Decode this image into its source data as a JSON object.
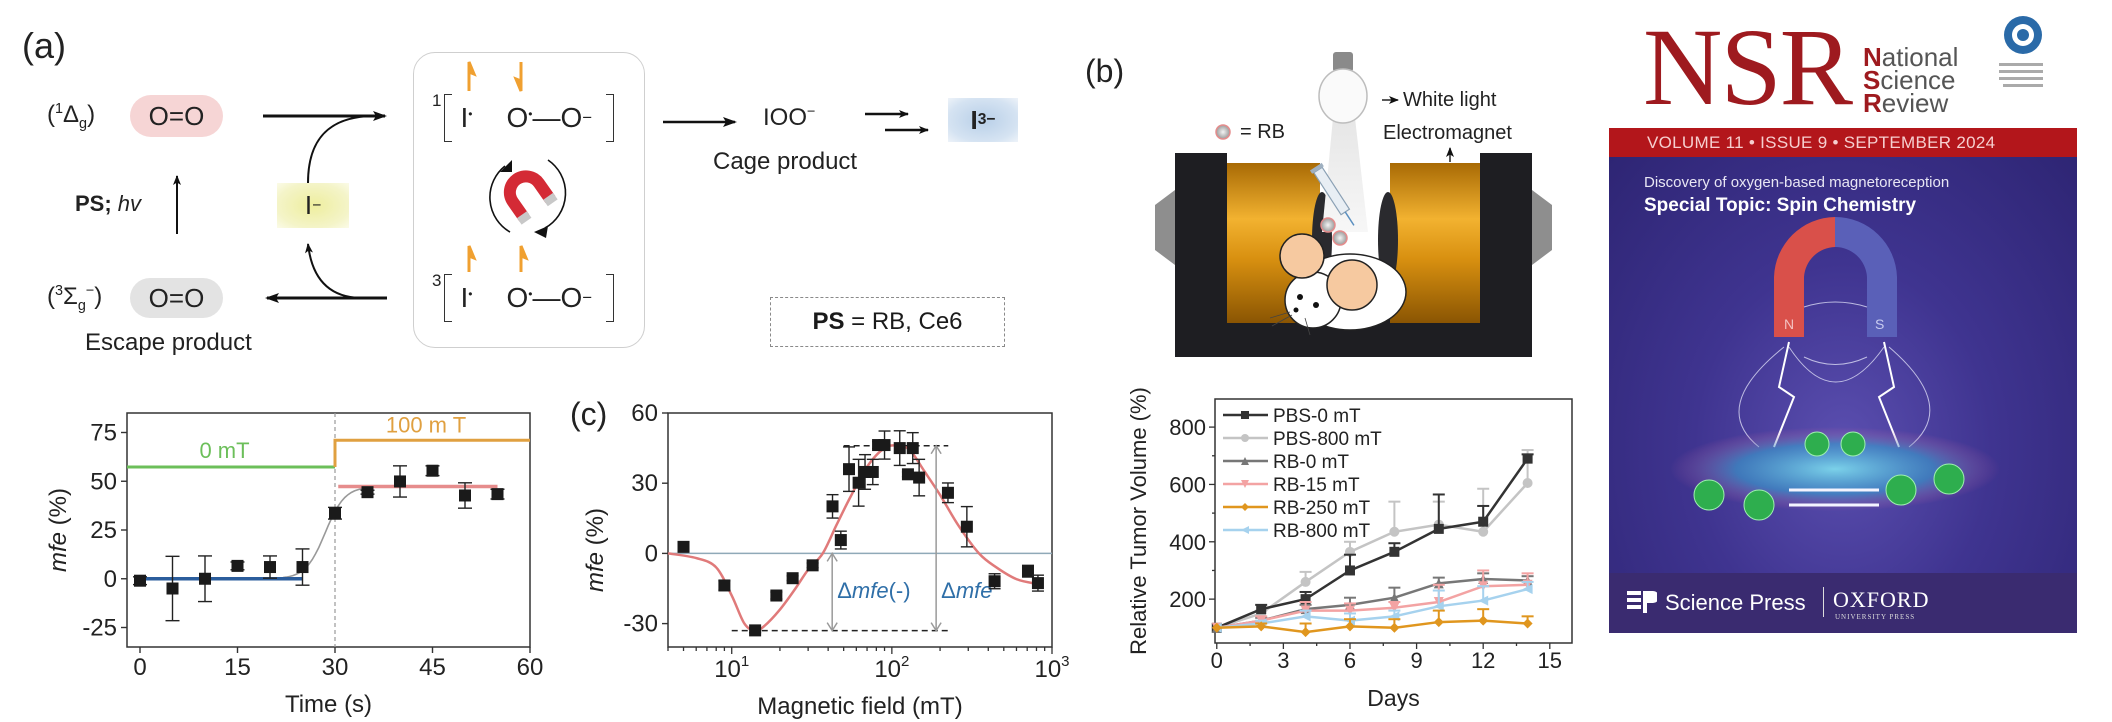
{
  "panel_a": {
    "label": "(a)",
    "singlet_state": {
      "open": "(",
      "sup": "1",
      "symbol": "Δ",
      "sub": "g",
      "close": ")"
    },
    "singlet_o2": "O=O",
    "triplet_state": {
      "open": "(",
      "sup": "3",
      "symbol": "Σ",
      "sub": "g",
      "sup2": "−",
      "close": ")"
    },
    "triplet_o2": "O=O",
    "escape_label": "Escape product",
    "excitation": {
      "bold": "PS;",
      "italic": " hv"
    },
    "iodide": {
      "symbol": "I",
      "charge": "−"
    },
    "singlet_pair": {
      "multiplicity": "1",
      "iodine": "I",
      "radical_dot": "•",
      "oxygen1": "O",
      "bond": "—",
      "oxygen2": "O",
      "charge": "−"
    },
    "triplet_pair": {
      "multiplicity": "3",
      "iodine": "I",
      "radical_dot": "•",
      "oxygen1": "O",
      "bond": "—",
      "oxygen2": "O",
      "charge": "−"
    },
    "cage_species": {
      "text": "IOO",
      "charge": "−"
    },
    "cage_label": "Cage product",
    "triiodide": {
      "symbol": "I",
      "sub": "3",
      "charge": "−"
    },
    "ps_definition": {
      "bold": "PS",
      "rest": " = RB, Ce6"
    },
    "icons": [
      "magnet-icon",
      "spin-up-arrow-icon",
      "spin-down-arrow-icon",
      "reaction-arrow-icon"
    ],
    "colors": {
      "singlet_bg": "#f6d5d5",
      "triplet_bg": "#e3e3e3",
      "iodide_bg": "#f1f1bd",
      "triiodide_bg": "#cfdff0",
      "spin": "#f0a030",
      "magnet": "#d42a35"
    }
  },
  "panel_b": {
    "label": "(b)",
    "rb_key": "= RB",
    "white_light": "White light",
    "electromagnet": "Electromagnet",
    "icons": [
      "light-bulb-icon",
      "electromagnet-icon",
      "mouse-icon",
      "syringe-icon",
      "rb-particle-icon"
    ]
  },
  "panel_c": {
    "label": "(c)"
  },
  "cover": {
    "masthead": "NSR",
    "journal_name": [
      {
        "initial": "N",
        "rest": "ational"
      },
      {
        "initial": "S",
        "rest": "cience"
      },
      {
        "initial": "R",
        "rest": "eview"
      }
    ],
    "issue_line": "VOLUME 11 • ISSUE 9 • SEPTEMBER 2024",
    "headline": "Discovery of oxygen-based magnetoreception",
    "special_topic": "Special Topic: Spin Chemistry",
    "magnet_poles": [
      "N",
      "S"
    ],
    "publisher_1": "Science Press",
    "publisher_2": "OXFORD",
    "publisher_2_sub": "UNIVERSITY PRESS",
    "colors": {
      "masthead": "#9e1a1f",
      "band": "#b3161b",
      "background": "#3f3490",
      "footer": "#3a2b70"
    }
  },
  "chart_data": [
    {
      "type": "scatter",
      "xlabel": "Time (s)",
      "ylabel": {
        "italic": "mfe",
        "rest": " (%)"
      },
      "xlim": [
        -2,
        60
      ],
      "ylim": [
        -35,
        85
      ],
      "x_ticks": [
        0,
        15,
        30,
        45,
        60
      ],
      "y_ticks": [
        -25,
        0,
        25,
        50,
        75
      ],
      "points": {
        "x": [
          0,
          5,
          10,
          15,
          20,
          25,
          30,
          35,
          40,
          45,
          50,
          55
        ],
        "y": [
          -1,
          -5,
          0,
          6.6,
          6,
          6,
          33.6,
          44.4,
          49.9,
          55.4,
          42.7,
          43.4
        ],
        "err": [
          2,
          16.5,
          11.7,
          2,
          5.7,
          9.3,
          3,
          1,
          8,
          2.5,
          6.5,
          2.5
        ]
      },
      "field_protocol": [
        {
          "label": "0 mT",
          "x": [
            -2,
            30
          ],
          "level": 57.3,
          "color": "#6cbf5a"
        },
        {
          "label": "100 m T",
          "x": [
            30,
            60
          ],
          "level": 71,
          "color": "#e0a040"
        }
      ],
      "fits": [
        {
          "x": [
            0,
            25
          ],
          "y": 0,
          "color": "#2b5d9c"
        },
        {
          "x": [
            30.5,
            55
          ],
          "y": 47.3,
          "color": "#e68c8c"
        }
      ],
      "sigmoid_fit": {
        "x": [
          22,
          31,
          34,
          38,
          42
        ],
        "y": [
          1.1,
          37.7,
          46.2,
          47.2,
          47.3
        ],
        "color": "#999999"
      },
      "field_switch_time": 30
    },
    {
      "type": "scatter",
      "xlabel": "Magnetic field (mT)",
      "ylabel": {
        "italic": "mfe",
        "rest": " (%)"
      },
      "xscale": "log",
      "xlim": [
        4,
        1000
      ],
      "ylim": [
        -40,
        60
      ],
      "x_tick_labels": [
        {
          "value": 10,
          "base": "10",
          "exp": "1"
        },
        {
          "value": 100,
          "base": "10",
          "exp": "2"
        },
        {
          "value": 1000,
          "base": "10",
          "exp": "3"
        }
      ],
      "y_ticks": [
        -30,
        0,
        30,
        60
      ],
      "points": {
        "x": [
          5,
          9,
          14,
          19,
          24,
          32,
          42.6,
          48,
          54,
          62,
          68,
          76,
          82,
          90,
          112,
          126,
          135,
          148,
          224,
          294,
          438,
          708,
          817
        ],
        "y": [
          2.8,
          -13.7,
          -32.9,
          -18,
          -10.6,
          -5.1,
          20.1,
          5.7,
          36,
          30.2,
          34.8,
          34.8,
          46.3,
          46.3,
          45,
          33.8,
          45,
          32.4,
          25.9,
          11.4,
          -11.9,
          -7.6,
          -12.7
        ],
        "err": [
          2,
          2,
          1,
          1.5,
          1,
          1,
          5,
          3.8,
          9.5,
          10,
          7.4,
          5.4,
          1.5,
          6,
          7.4,
          1,
          6.6,
          7.8,
          4.2,
          8.6,
          3.2,
          2.5,
          3.4
        ]
      },
      "fit_curve": {
        "x": [
          4,
          6,
          8,
          10,
          12,
          14,
          16,
          20,
          25,
          30,
          37,
          45,
          55,
          70,
          90,
          110,
          130,
          160,
          200,
          260,
          350,
          450,
          600,
          800
        ],
        "y": [
          0,
          -2,
          -6,
          -18,
          -30,
          -33,
          -31,
          -24,
          -15,
          -7,
          0,
          12,
          24,
          37,
          45,
          46,
          44,
          35,
          25,
          12,
          0,
          -6,
          -11,
          -13
        ],
        "color": "#e07a7a"
      },
      "zero_line_color": "#8fa9b8",
      "reference_lines": [
        {
          "y": -33,
          "x": [
            10,
            225
          ]
        },
        {
          "y": 46,
          "x": [
            50,
            225
          ]
        }
      ],
      "annotations": [
        {
          "text_prefix": "Δ",
          "text_italic": "mfe",
          "text_suffix": "(-)",
          "x": 42.4,
          "from": 0,
          "to": -33
        },
        {
          "text_prefix": "Δ",
          "text_italic": "mfe",
          "text_suffix": "",
          "x": 189,
          "from": -33,
          "to": 46
        }
      ],
      "annotation_color": "#2f6fa8"
    },
    {
      "type": "line",
      "xlabel": "Days",
      "ylabel": "Relative Tumor Volume (%)",
      "xlim": [
        0,
        16
      ],
      "ylim": [
        47,
        898
      ],
      "x_ticks": [
        0,
        3,
        6,
        9,
        12,
        15
      ],
      "y_ticks": [
        200,
        400,
        600,
        800
      ],
      "legend_position": "top-left",
      "x": [
        0,
        2,
        4,
        6,
        8,
        10,
        12,
        14
      ],
      "series": [
        {
          "name": "PBS-0 mT",
          "color": "#333333",
          "marker": "square",
          "values": [
            100,
            165,
            200,
            300,
            365,
            445,
            470,
            690
          ],
          "err": [
            0,
            15,
            25,
            55,
            30,
            120,
            55,
            15
          ]
        },
        {
          "name": "PBS-800 mT",
          "color": "#c4c4c4",
          "marker": "circle",
          "values": [
            100,
            150,
            260,
            365,
            435,
            460,
            435,
            605
          ],
          "err": [
            0,
            10,
            35,
            35,
            105,
            80,
            150,
            115
          ]
        },
        {
          "name": "RB-0 mT",
          "color": "#777777",
          "marker": "triangle-up",
          "values": [
            100,
            125,
            165,
            180,
            205,
            255,
            270,
            265
          ],
          "err": [
            0,
            10,
            15,
            25,
            35,
            20,
            20,
            15
          ]
        },
        {
          "name": "RB-15 mT",
          "color": "#f3a3a3",
          "marker": "triangle-down",
          "values": [
            100,
            125,
            160,
            160,
            170,
            190,
            245,
            250
          ],
          "err": [
            0,
            15,
            30,
            25,
            20,
            60,
            55,
            40
          ]
        },
        {
          "name": "RB-250 mT",
          "color": "#e0961e",
          "marker": "diamond",
          "values": [
            100,
            105,
            85,
            105,
            100,
            120,
            125,
            115
          ],
          "err": [
            0,
            10,
            30,
            25,
            30,
            40,
            40,
            25
          ]
        },
        {
          "name": "RB-800 mT",
          "color": "#a6d2ee",
          "marker": "triangle-left",
          "values": [
            100,
            115,
            140,
            125,
            140,
            175,
            195,
            235
          ],
          "err": [
            0,
            10,
            20,
            25,
            20,
            55,
            50,
            25
          ]
        }
      ]
    }
  ]
}
